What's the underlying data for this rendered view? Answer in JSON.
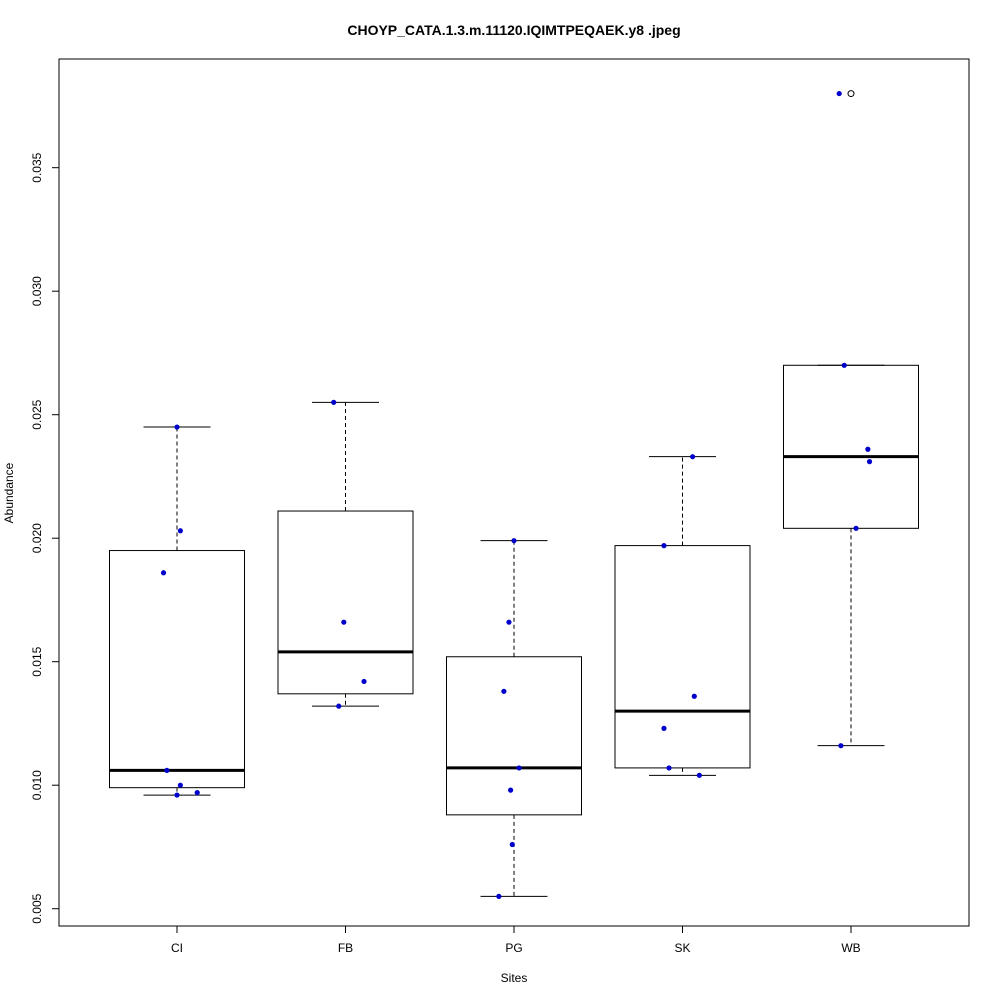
{
  "chart_data": {
    "type": "boxplot",
    "title": "CHOYP_CATA.1.3.m.11120.IQIMTPEQAEK.y8 .jpeg",
    "xlabel": "Sites",
    "ylabel": "Abundance",
    "ylim": [
      0.0043,
      0.0394
    ],
    "y_ticks": [
      "0.005",
      "0.010",
      "0.015",
      "0.020",
      "0.025",
      "0.030",
      "0.035"
    ],
    "categories": [
      "CI",
      "FB",
      "PG",
      "SK",
      "WB"
    ],
    "boxes": [
      {
        "category": "CI",
        "whisker_low": 0.0096,
        "q1": 0.0099,
        "median": 0.0106,
        "q3": 0.0195,
        "whisker_high": 0.0245,
        "outliers": []
      },
      {
        "category": "FB",
        "whisker_low": 0.0132,
        "q1": 0.0137,
        "median": 0.0154,
        "q3": 0.0211,
        "whisker_high": 0.0255,
        "outliers": []
      },
      {
        "category": "PG",
        "whisker_low": 0.0055,
        "q1": 0.0088,
        "median": 0.0107,
        "q3": 0.0152,
        "whisker_high": 0.0199,
        "outliers": []
      },
      {
        "category": "SK",
        "whisker_low": 0.0104,
        "q1": 0.0107,
        "median": 0.013,
        "q3": 0.0197,
        "whisker_high": 0.0233,
        "outliers": []
      },
      {
        "category": "WB",
        "whisker_low": 0.0116,
        "q1": 0.0204,
        "median": 0.0233,
        "q3": 0.027,
        "whisker_high": 0.027,
        "outliers": [
          0.038
        ]
      }
    ],
    "points": [
      {
        "category": "CI",
        "y": 0.0245,
        "jitter": 0.0
      },
      {
        "category": "CI",
        "y": 0.0203,
        "jitter": 0.02
      },
      {
        "category": "CI",
        "y": 0.0186,
        "jitter": -0.08
      },
      {
        "category": "CI",
        "y": 0.0106,
        "jitter": -0.06
      },
      {
        "category": "CI",
        "y": 0.01,
        "jitter": 0.02
      },
      {
        "category": "CI",
        "y": 0.0097,
        "jitter": 0.12
      },
      {
        "category": "CI",
        "y": 0.0096,
        "jitter": 0.0
      },
      {
        "category": "FB",
        "y": 0.0255,
        "jitter": -0.07
      },
      {
        "category": "FB",
        "y": 0.0166,
        "jitter": -0.01
      },
      {
        "category": "FB",
        "y": 0.0142,
        "jitter": 0.11
      },
      {
        "category": "FB",
        "y": 0.0132,
        "jitter": -0.04
      },
      {
        "category": "PG",
        "y": 0.0199,
        "jitter": 0.0
      },
      {
        "category": "PG",
        "y": 0.0166,
        "jitter": -0.03
      },
      {
        "category": "PG",
        "y": 0.0138,
        "jitter": -0.06
      },
      {
        "category": "PG",
        "y": 0.0107,
        "jitter": 0.03
      },
      {
        "category": "PG",
        "y": 0.0098,
        "jitter": -0.02
      },
      {
        "category": "PG",
        "y": 0.0076,
        "jitter": -0.01
      },
      {
        "category": "PG",
        "y": 0.0055,
        "jitter": -0.09
      },
      {
        "category": "SK",
        "y": 0.0233,
        "jitter": 0.06
      },
      {
        "category": "SK",
        "y": 0.0197,
        "jitter": -0.11
      },
      {
        "category": "SK",
        "y": 0.0136,
        "jitter": 0.07
      },
      {
        "category": "SK",
        "y": 0.0123,
        "jitter": -0.11
      },
      {
        "category": "SK",
        "y": 0.0107,
        "jitter": -0.08
      },
      {
        "category": "SK",
        "y": 0.0104,
        "jitter": 0.1
      },
      {
        "category": "WB",
        "y": 0.038,
        "jitter": -0.07
      },
      {
        "category": "WB",
        "y": 0.027,
        "jitter": -0.04
      },
      {
        "category": "WB",
        "y": 0.0236,
        "jitter": 0.1
      },
      {
        "category": "WB",
        "y": 0.0231,
        "jitter": 0.11
      },
      {
        "category": "WB",
        "y": 0.0204,
        "jitter": 0.03
      },
      {
        "category": "WB",
        "y": 0.0116,
        "jitter": -0.06
      }
    ],
    "colors": {
      "points": "#0000cc",
      "box": "#000000",
      "background": "#ffffff"
    }
  }
}
